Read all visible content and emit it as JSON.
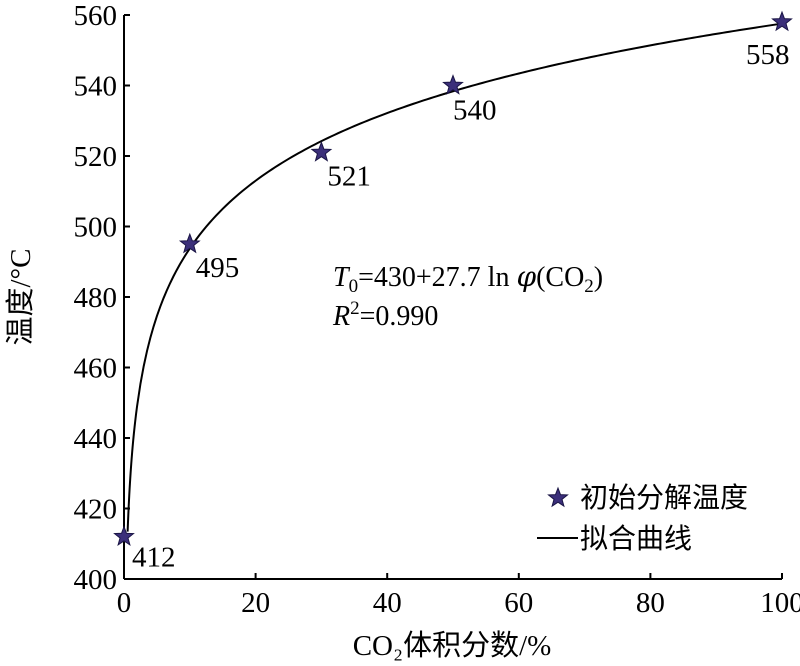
{
  "chart_data": {
    "type": "scatter",
    "title": "",
    "xlabel": "CO₂体积分数/%",
    "ylabel": "温度/°C",
    "xlim": [
      0,
      100
    ],
    "ylim": [
      400,
      560
    ],
    "xticks": [
      "0",
      "20",
      "40",
      "60",
      "80",
      "100"
    ],
    "yticks": [
      "400",
      "420",
      "440",
      "460",
      "480",
      "500",
      "520",
      "540",
      "560"
    ],
    "grid": false,
    "series": [
      {
        "name": "初始分解温度",
        "marker": "star",
        "color": "#3b2f7a",
        "points": [
          {
            "x": 0,
            "y": 412,
            "label": "412"
          },
          {
            "x": 10,
            "y": 495,
            "label": "495"
          },
          {
            "x": 30,
            "y": 521,
            "label": "521"
          },
          {
            "x": 50,
            "y": 540,
            "label": "540"
          },
          {
            "x": 100,
            "y": 558,
            "label": "558"
          }
        ]
      },
      {
        "name": "拟合曲线",
        "type": "line",
        "color": "#000000"
      }
    ],
    "fit": {
      "intercept": 430,
      "coefficient": 27.7,
      "equation": {
        "lhs_var": "T",
        "lhs_sub": "0",
        "rhs_main": "=430+27.7 ln ",
        "phi": "φ",
        "paren_open": "(CO",
        "sub2": "2",
        "paren_close": ")"
      },
      "r2": {
        "var": "R",
        "sup": "2",
        "value": "=0.990"
      }
    },
    "legend": {
      "position": "bottom-right",
      "entries": [
        "初始分解温度",
        "拟合曲线"
      ]
    }
  }
}
